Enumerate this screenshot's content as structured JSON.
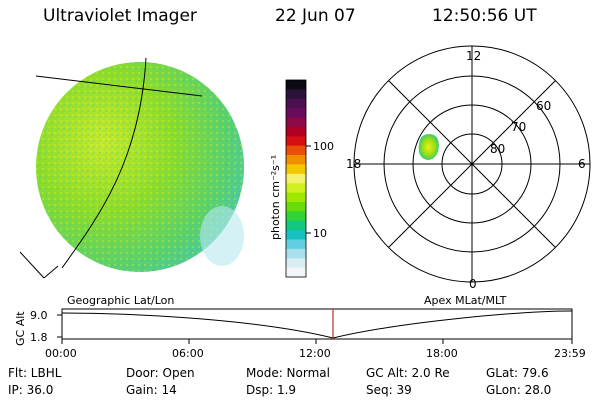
{
  "header": {
    "title": "Ultraviolet Imager",
    "date": "22 Jun 07",
    "time": "12:50:56 UT"
  },
  "colorbar": {
    "unit": "photon cm⁻²s⁻¹",
    "ticks": [
      "100",
      "10"
    ],
    "colors": [
      "#0a0a12",
      "#2a123a",
      "#4a1050",
      "#6a0a5a",
      "#8c0846",
      "#b00026",
      "#d41010",
      "#e85008",
      "#f09000",
      "#f4c800",
      "#f4f070",
      "#d0f020",
      "#a0e800",
      "#68dc08",
      "#30d238",
      "#10c880",
      "#18c0c0",
      "#60d0e0",
      "#a8e0ee",
      "#d8eef4",
      "#f2f6f8"
    ]
  },
  "polar": {
    "lat_labels": [
      "80",
      "70",
      "60"
    ],
    "mlt_labels": [
      "12",
      "18",
      "6",
      "0"
    ]
  },
  "timeline": {
    "y_axis_title": "GC Alt",
    "y_ticks": [
      "9.0",
      "1.8"
    ],
    "left_caption": "Geographic Lat/Lon",
    "right_caption": "Apex  MLat/MLT",
    "x_ticks": [
      "00:00",
      "06:00",
      "12:00",
      "18:00",
      "23:59"
    ],
    "marker_time": "12:50:56"
  },
  "info": {
    "filter": "Flt: LBHL",
    "ip": "IP: 36.0",
    "door": "Door: Open",
    "gain": "Gain: 14",
    "mode": "Mode: Normal",
    "dsp": "Dsp:     1.9",
    "gc_alt": "GC Alt: 2.0 Re",
    "seq": "Seq: 39",
    "glat": "GLat:   79.6",
    "glon": "GLon:   28.0"
  }
}
